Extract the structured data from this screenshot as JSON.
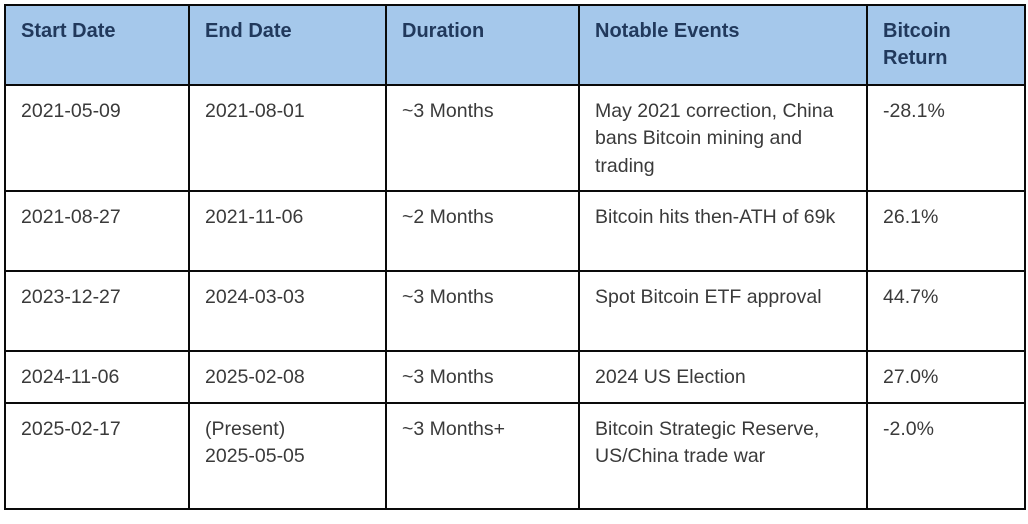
{
  "table": {
    "columns": [
      {
        "label": "Start Date"
      },
      {
        "label": "End Date"
      },
      {
        "label": "Duration"
      },
      {
        "label": "Notable Events"
      },
      {
        "label": "Bitcoin Return"
      }
    ],
    "rows": [
      {
        "start_date": "2021-05-09",
        "end_date": "2021-08-01",
        "duration": "~3 Months",
        "notable_events": "May 2021 correction, China bans Bitcoin mining and trading",
        "bitcoin_return": "-28.1%",
        "height": "tall"
      },
      {
        "start_date": "2021-08-27",
        "end_date": "2021-11-06",
        "duration": "~2 Months",
        "notable_events": "Bitcoin hits then-ATH of 69k",
        "bitcoin_return": "26.1%",
        "height": "med"
      },
      {
        "start_date": "2023-12-27",
        "end_date": "2024-03-03",
        "duration": "~3 Months",
        "notable_events": "Spot Bitcoin ETF approval",
        "bitcoin_return": "44.7%",
        "height": "med"
      },
      {
        "start_date": "2024-11-06",
        "end_date": "2025-02-08",
        "duration": "~3 Months",
        "notable_events": "2024 US Election",
        "bitcoin_return": "27.0%",
        "height": "short"
      },
      {
        "start_date": "2025-02-17",
        "end_date": "(Present)\n2025-05-05",
        "duration": "~3 Months+",
        "notable_events": "Bitcoin Strategic Reserve, US/China trade war",
        "bitcoin_return": "-2.0%",
        "height": "tall"
      }
    ]
  },
  "colors": {
    "header_background": "#a5c8eb",
    "header_text": "#21395c",
    "body_text": "#3a3a3a",
    "border": "#0a0a0a",
    "page_background": "#ffffff"
  }
}
